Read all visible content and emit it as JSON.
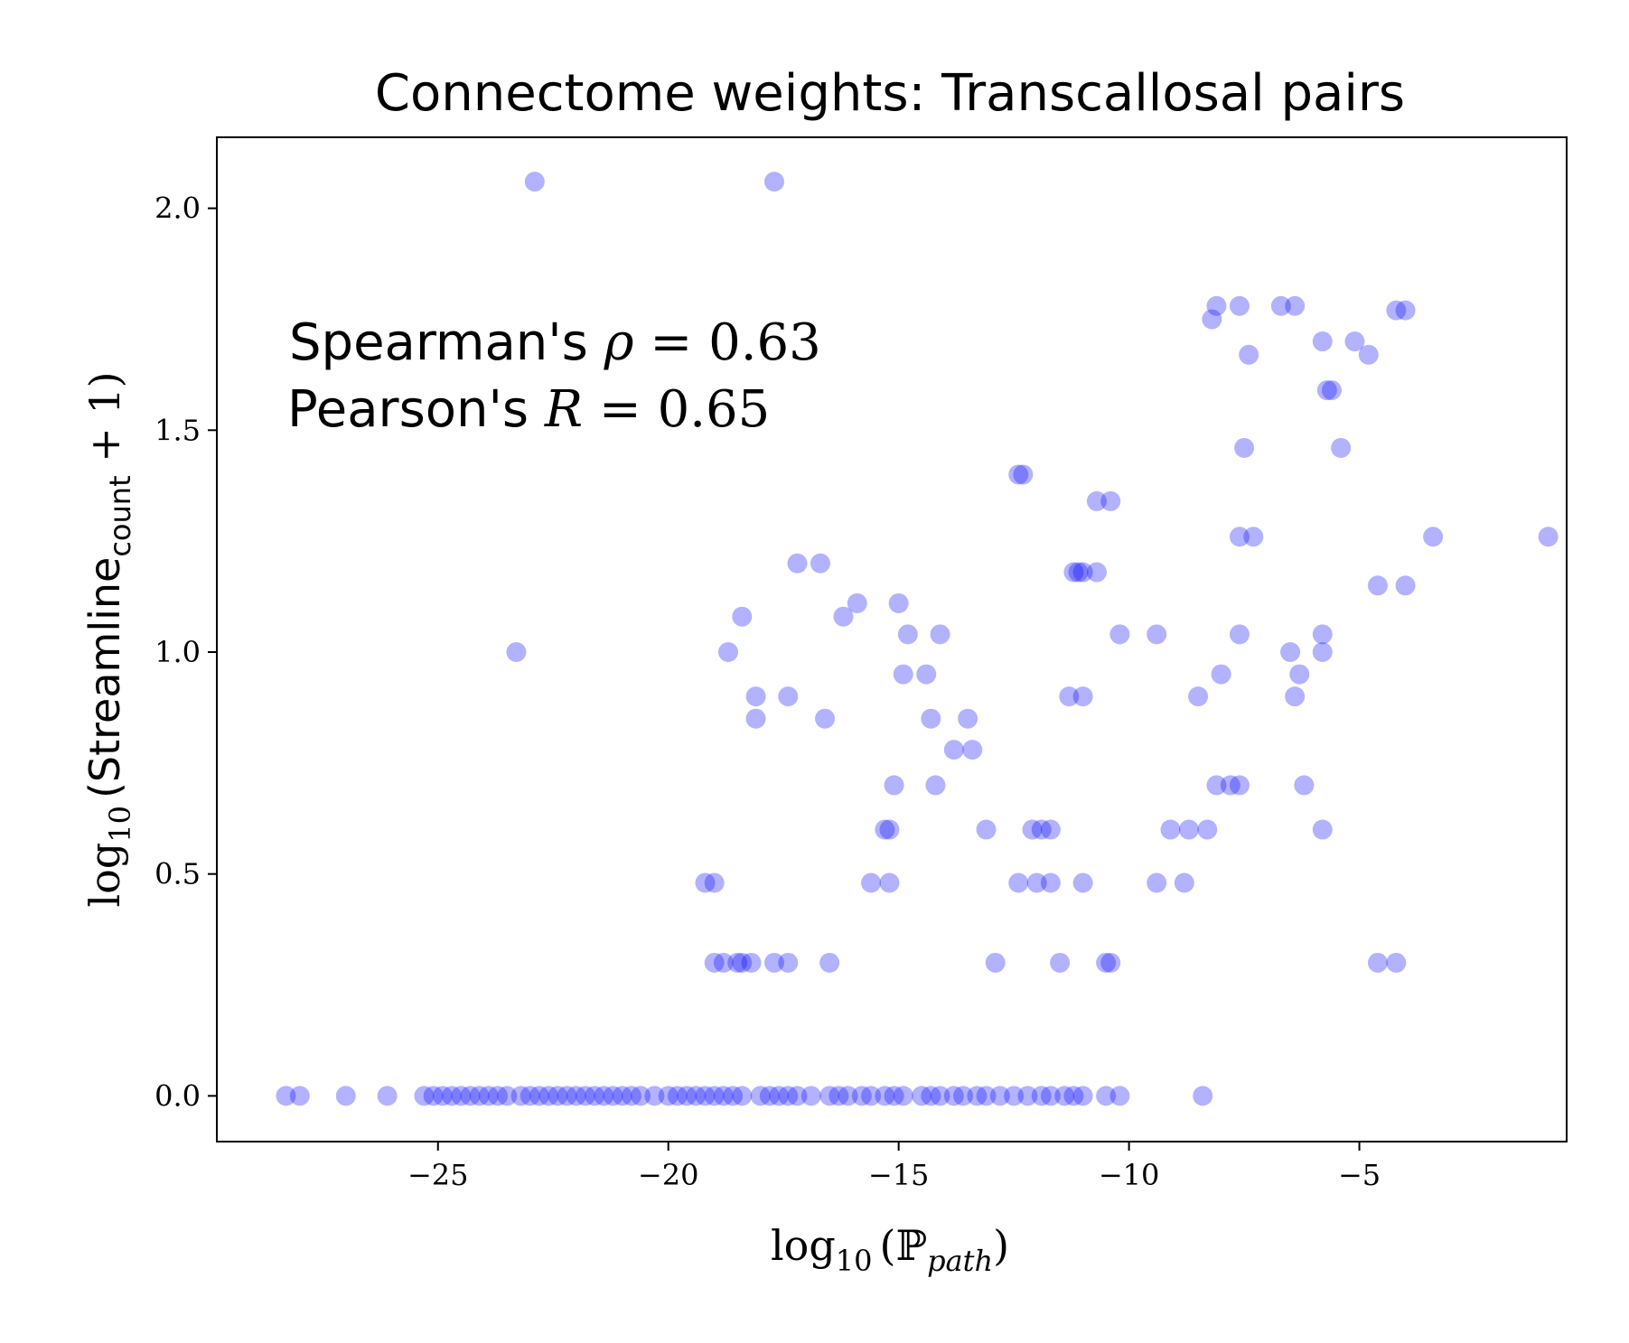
{
  "chart_data": {
    "type": "scatter",
    "title": "Connectome weights: Transcallosal pairs",
    "xlabel": {
      "prefix": "log",
      "sub": "10",
      "body": "(ℙ",
      "body_sub": "path",
      "suffix": ")"
    },
    "ylabel": {
      "prefix": "log",
      "sub": "10",
      "body": "(Streamline",
      "body_sub": "count",
      "suffix": " + 1)"
    },
    "annotation": {
      "line1": {
        "text": "Spearman's ",
        "symbol": "ρ",
        "value": " = 0.63"
      },
      "line2": {
        "text": "Pearson's ",
        "symbol": "R",
        "value": " = 0.65"
      }
    },
    "xlim": [
      -29.8,
      -0.5
    ],
    "ylim": [
      -0.103,
      2.16
    ],
    "xticks": [
      -25,
      -20,
      -15,
      -10,
      -5
    ],
    "xtick_labels": [
      "−25",
      "−20",
      "−15",
      "−10",
      "−5"
    ],
    "yticks": [
      0.0,
      0.5,
      1.0,
      1.5,
      2.0
    ],
    "ytick_labels": [
      "0.0",
      "0.5",
      "1.0",
      "1.5",
      "2.0"
    ],
    "marker_color": "#0000ff",
    "marker_alpha": 0.3,
    "points": [
      [
        -22.9,
        2.06
      ],
      [
        -17.7,
        2.06
      ],
      [
        -8.2,
        1.75
      ],
      [
        -8.1,
        1.78
      ],
      [
        -7.6,
        1.78
      ],
      [
        -6.7,
        1.78
      ],
      [
        -6.4,
        1.78
      ],
      [
        -4.2,
        1.77
      ],
      [
        -4.0,
        1.77
      ],
      [
        -5.8,
        1.7
      ],
      [
        -5.1,
        1.7
      ],
      [
        -7.4,
        1.67
      ],
      [
        -4.8,
        1.67
      ],
      [
        -5.7,
        1.59
      ],
      [
        -5.6,
        1.59
      ],
      [
        -7.5,
        1.46
      ],
      [
        -5.4,
        1.46
      ],
      [
        -12.4,
        1.4
      ],
      [
        -12.3,
        1.4
      ],
      [
        -10.7,
        1.34
      ],
      [
        -10.4,
        1.34
      ],
      [
        -7.6,
        1.26
      ],
      [
        -7.3,
        1.26
      ],
      [
        -3.4,
        1.26
      ],
      [
        -0.9,
        1.26
      ],
      [
        -17.2,
        1.2
      ],
      [
        -16.7,
        1.2
      ],
      [
        -11.2,
        1.18
      ],
      [
        -11.1,
        1.18
      ],
      [
        -11.0,
        1.18
      ],
      [
        -10.7,
        1.18
      ],
      [
        -15.9,
        1.11
      ],
      [
        -15.0,
        1.11
      ],
      [
        -4.6,
        1.15
      ],
      [
        -4.0,
        1.15
      ],
      [
        -18.4,
        1.08
      ],
      [
        -16.2,
        1.08
      ],
      [
        -14.8,
        1.04
      ],
      [
        -14.1,
        1.04
      ],
      [
        -10.2,
        1.04
      ],
      [
        -9.4,
        1.04
      ],
      [
        -7.6,
        1.04
      ],
      [
        -5.8,
        1.04
      ],
      [
        -23.3,
        1.0
      ],
      [
        -18.7,
        1.0
      ],
      [
        -6.5,
        1.0
      ],
      [
        -5.8,
        1.0
      ],
      [
        -14.9,
        0.95
      ],
      [
        -14.4,
        0.95
      ],
      [
        -8.0,
        0.95
      ],
      [
        -6.3,
        0.95
      ],
      [
        -18.1,
        0.9
      ],
      [
        -17.4,
        0.9
      ],
      [
        -11.3,
        0.9
      ],
      [
        -11.0,
        0.9
      ],
      [
        -8.5,
        0.9
      ],
      [
        -6.4,
        0.9
      ],
      [
        -18.1,
        0.85
      ],
      [
        -16.6,
        0.85
      ],
      [
        -14.3,
        0.85
      ],
      [
        -13.5,
        0.85
      ],
      [
        -13.8,
        0.78
      ],
      [
        -13.4,
        0.78
      ],
      [
        -15.1,
        0.7
      ],
      [
        -14.2,
        0.7
      ],
      [
        -8.1,
        0.7
      ],
      [
        -7.8,
        0.7
      ],
      [
        -7.6,
        0.7
      ],
      [
        -6.2,
        0.7
      ],
      [
        -15.3,
        0.6
      ],
      [
        -15.2,
        0.6
      ],
      [
        -13.1,
        0.6
      ],
      [
        -12.1,
        0.6
      ],
      [
        -11.9,
        0.6
      ],
      [
        -11.7,
        0.6
      ],
      [
        -9.1,
        0.6
      ],
      [
        -8.7,
        0.6
      ],
      [
        -8.3,
        0.6
      ],
      [
        -5.8,
        0.6
      ],
      [
        -19.2,
        0.48
      ],
      [
        -19.0,
        0.48
      ],
      [
        -15.6,
        0.48
      ],
      [
        -15.2,
        0.48
      ],
      [
        -12.4,
        0.48
      ],
      [
        -12.0,
        0.48
      ],
      [
        -11.7,
        0.48
      ],
      [
        -11.0,
        0.48
      ],
      [
        -9.4,
        0.48
      ],
      [
        -8.8,
        0.48
      ],
      [
        -19.0,
        0.3
      ],
      [
        -18.8,
        0.3
      ],
      [
        -18.5,
        0.3
      ],
      [
        -18.4,
        0.3
      ],
      [
        -18.2,
        0.3
      ],
      [
        -17.7,
        0.3
      ],
      [
        -17.4,
        0.3
      ],
      [
        -16.5,
        0.3
      ],
      [
        -12.9,
        0.3
      ],
      [
        -11.5,
        0.3
      ],
      [
        -10.5,
        0.3
      ],
      [
        -10.4,
        0.3
      ],
      [
        -4.6,
        0.3
      ],
      [
        -4.2,
        0.3
      ],
      [
        -28.3,
        0.0
      ],
      [
        -28.0,
        0.0
      ],
      [
        -27.0,
        0.0
      ],
      [
        -26.1,
        0.0
      ],
      [
        -25.3,
        0.0
      ],
      [
        -25.1,
        0.0
      ],
      [
        -24.9,
        0.0
      ],
      [
        -24.7,
        0.0
      ],
      [
        -24.5,
        0.0
      ],
      [
        -24.3,
        0.0
      ],
      [
        -24.1,
        0.0
      ],
      [
        -23.9,
        0.0
      ],
      [
        -23.7,
        0.0
      ],
      [
        -23.5,
        0.0
      ],
      [
        -23.2,
        0.0
      ],
      [
        -23.0,
        0.0
      ],
      [
        -22.8,
        0.0
      ],
      [
        -22.6,
        0.0
      ],
      [
        -22.4,
        0.0
      ],
      [
        -22.2,
        0.0
      ],
      [
        -22.0,
        0.0
      ],
      [
        -21.8,
        0.0
      ],
      [
        -21.6,
        0.0
      ],
      [
        -21.4,
        0.0
      ],
      [
        -21.2,
        0.0
      ],
      [
        -21.0,
        0.0
      ],
      [
        -20.8,
        0.0
      ],
      [
        -20.6,
        0.0
      ],
      [
        -20.3,
        0.0
      ],
      [
        -20.0,
        0.0
      ],
      [
        -19.8,
        0.0
      ],
      [
        -19.6,
        0.0
      ],
      [
        -19.4,
        0.0
      ],
      [
        -19.2,
        0.0
      ],
      [
        -19.0,
        0.0
      ],
      [
        -18.8,
        0.0
      ],
      [
        -18.6,
        0.0
      ],
      [
        -18.4,
        0.0
      ],
      [
        -18.0,
        0.0
      ],
      [
        -17.8,
        0.0
      ],
      [
        -17.6,
        0.0
      ],
      [
        -17.4,
        0.0
      ],
      [
        -17.2,
        0.0
      ],
      [
        -16.9,
        0.0
      ],
      [
        -16.5,
        0.0
      ],
      [
        -16.3,
        0.0
      ],
      [
        -16.1,
        0.0
      ],
      [
        -15.8,
        0.0
      ],
      [
        -15.6,
        0.0
      ],
      [
        -15.3,
        0.0
      ],
      [
        -15.1,
        0.0
      ],
      [
        -14.9,
        0.0
      ],
      [
        -14.5,
        0.0
      ],
      [
        -14.3,
        0.0
      ],
      [
        -14.1,
        0.0
      ],
      [
        -13.8,
        0.0
      ],
      [
        -13.6,
        0.0
      ],
      [
        -13.3,
        0.0
      ],
      [
        -13.1,
        0.0
      ],
      [
        -12.8,
        0.0
      ],
      [
        -12.5,
        0.0
      ],
      [
        -12.2,
        0.0
      ],
      [
        -11.9,
        0.0
      ],
      [
        -11.7,
        0.0
      ],
      [
        -11.4,
        0.0
      ],
      [
        -11.2,
        0.0
      ],
      [
        -11.0,
        0.0
      ],
      [
        -10.5,
        0.0
      ],
      [
        -10.2,
        0.0
      ],
      [
        -8.4,
        0.0
      ]
    ]
  }
}
